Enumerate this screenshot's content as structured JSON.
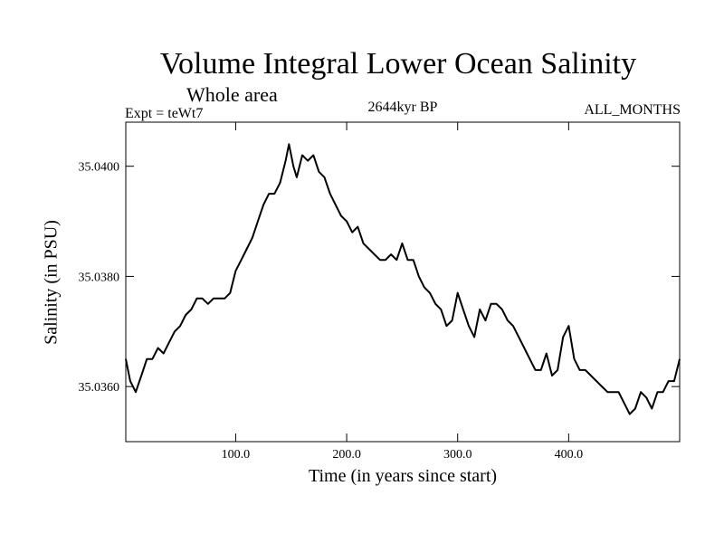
{
  "chart_data": {
    "type": "line",
    "title": "Volume Integral Lower Ocean Salinity",
    "subtitle": "Whole area",
    "experiment_label": "Expt = teWt7",
    "period_label": "2644kyr BP",
    "months_label": "ALL_MONTHS",
    "xlabel": "Time (in years since start)",
    "ylabel": "Salinity (in PSU)",
    "xlim": [
      1,
      500
    ],
    "ylim": [
      35.035,
      35.0408
    ],
    "x_ticks": [
      100,
      200,
      300,
      400
    ],
    "x_tick_labels": [
      "100.0",
      "200.0",
      "300.0",
      "400.0"
    ],
    "y_ticks": [
      35.036,
      35.038,
      35.04
    ],
    "y_tick_labels": [
      "35.0360",
      "35.0380",
      "35.0400"
    ],
    "grid": false,
    "series": [
      {
        "name": "Salinity",
        "color": "#000000",
        "x": [
          1,
          5,
          10,
          15,
          20,
          25,
          30,
          35,
          40,
          45,
          50,
          55,
          60,
          65,
          70,
          75,
          80,
          85,
          90,
          95,
          100,
          105,
          110,
          115,
          120,
          125,
          130,
          135,
          140,
          145,
          148,
          152,
          155,
          160,
          165,
          170,
          175,
          180,
          185,
          190,
          195,
          200,
          205,
          210,
          215,
          220,
          225,
          230,
          235,
          240,
          245,
          250,
          255,
          260,
          265,
          270,
          275,
          280,
          285,
          290,
          295,
          300,
          305,
          310,
          315,
          320,
          325,
          330,
          335,
          340,
          345,
          350,
          355,
          360,
          365,
          370,
          375,
          380,
          385,
          390,
          395,
          400,
          405,
          410,
          415,
          420,
          425,
          430,
          435,
          440,
          445,
          450,
          455,
          460,
          465,
          470,
          475,
          480,
          485,
          490,
          495,
          500
        ],
        "values": [
          35.0365,
          35.0361,
          35.0359,
          35.0362,
          35.0365,
          35.0365,
          35.0367,
          35.0366,
          35.0368,
          35.037,
          35.0371,
          35.0373,
          35.0374,
          35.0376,
          35.0376,
          35.0375,
          35.0376,
          35.0376,
          35.0376,
          35.0377,
          35.0381,
          35.0383,
          35.0385,
          35.0387,
          35.039,
          35.0393,
          35.0395,
          35.0395,
          35.0397,
          35.0401,
          35.0404,
          35.04,
          35.0398,
          35.0402,
          35.0401,
          35.0402,
          35.0399,
          35.0398,
          35.0395,
          35.0393,
          35.0391,
          35.039,
          35.0388,
          35.0389,
          35.0386,
          35.0385,
          35.0384,
          35.0383,
          35.0383,
          35.0384,
          35.0383,
          35.0386,
          35.0383,
          35.0383,
          35.038,
          35.0378,
          35.0377,
          35.0375,
          35.0374,
          35.0371,
          35.0372,
          35.0377,
          35.0374,
          35.0371,
          35.0369,
          35.0374,
          35.0372,
          35.0375,
          35.0375,
          35.0374,
          35.0372,
          35.0371,
          35.0369,
          35.0367,
          35.0365,
          35.0363,
          35.0363,
          35.0366,
          35.0362,
          35.0363,
          35.0369,
          35.0371,
          35.0365,
          35.0363,
          35.0363,
          35.0362,
          35.0361,
          35.036,
          35.0359,
          35.0359,
          35.0359,
          35.0357,
          35.0355,
          35.0356,
          35.0359,
          35.0358,
          35.0356,
          35.0359,
          35.0359,
          35.0361,
          35.0361,
          35.0365
        ]
      }
    ]
  }
}
